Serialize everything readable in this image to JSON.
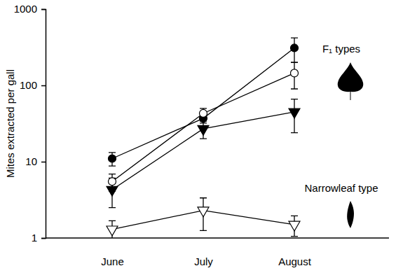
{
  "chart_data": {
    "type": "line",
    "y_label": "Mites extracted per gall",
    "categories": [
      "June",
      "July",
      "August"
    ],
    "log": "y",
    "ylim": [
      1,
      1000
    ],
    "yticks": [
      1,
      10,
      100,
      1000
    ],
    "annotations": [
      "F₁ types",
      "Narrowleaf type"
    ],
    "series": [
      {
        "color": "#000000",
        "marker": "circle",
        "values": [
          11,
          37,
          310
        ],
        "errors": [
          2.2,
          5,
          110
        ]
      },
      {
        "color": "#000000",
        "marker": "circle-open",
        "values": [
          5.5,
          43,
          145
        ],
        "errors": [
          1.4,
          7,
          55
        ]
      },
      {
        "color": "#000000",
        "marker": "triangle-down",
        "values": [
          4.3,
          27,
          45
        ],
        "errors": [
          1.8,
          7,
          21
        ]
      },
      {
        "color": "#000000",
        "marker": "triangle-down-open",
        "values": [
          1.3,
          2.3,
          1.5
        ],
        "errors": [
          0.38,
          1.05,
          0.45
        ]
      }
    ]
  }
}
